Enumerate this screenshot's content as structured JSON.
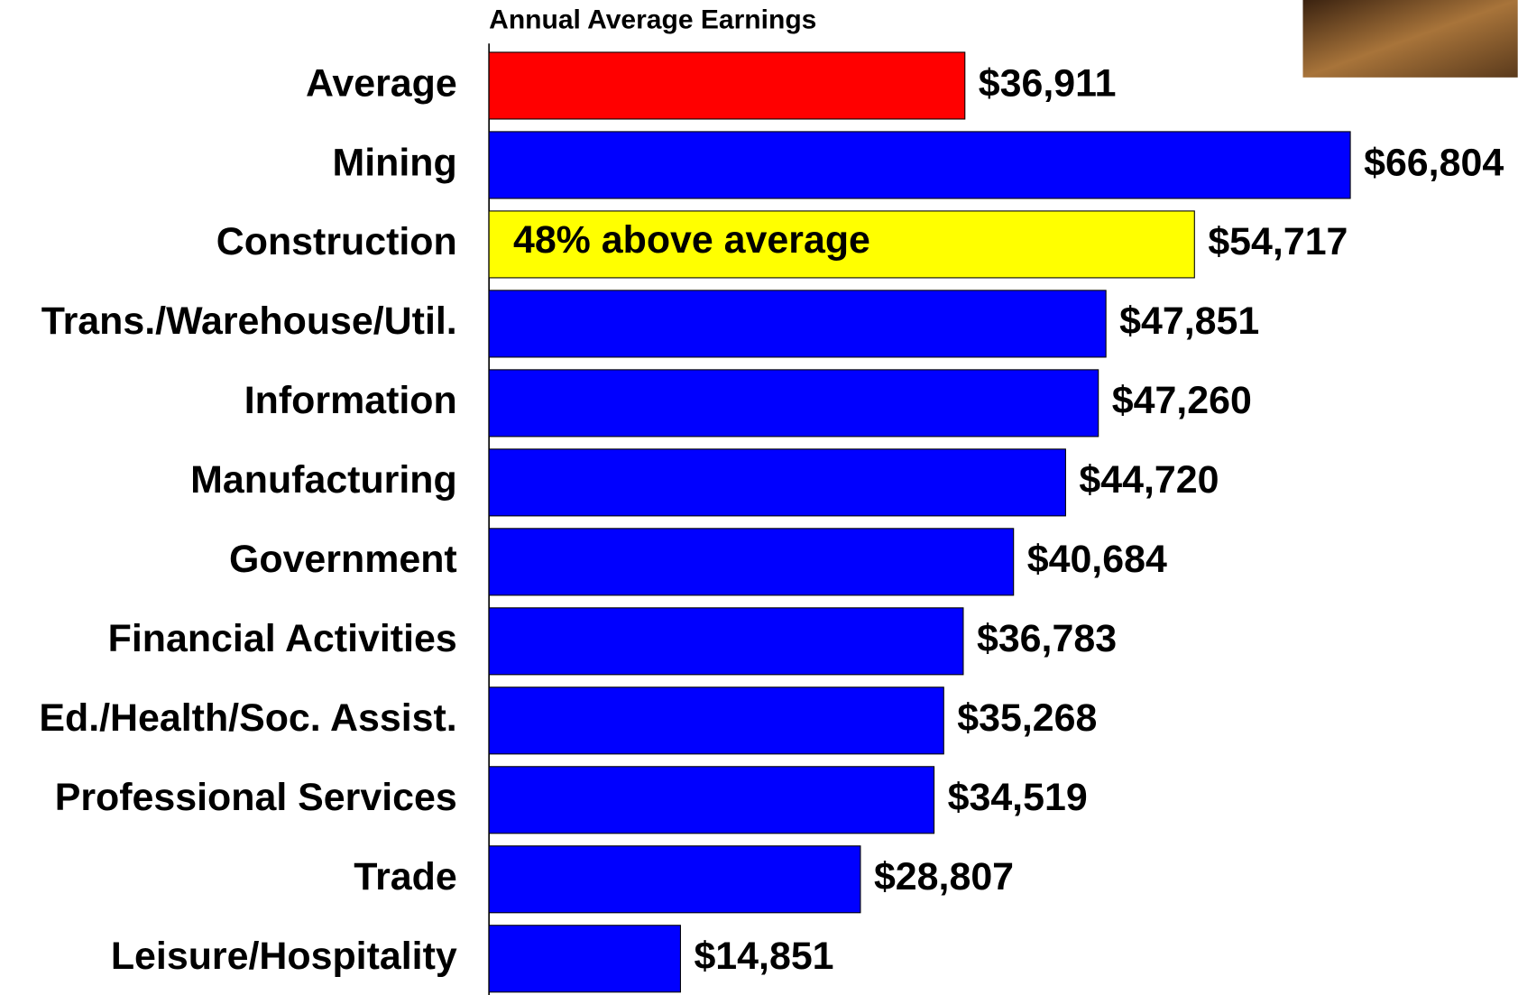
{
  "chart_data": {
    "type": "hbar",
    "title": "Annual Average Earnings",
    "categories": [
      "Average",
      "Mining",
      "Construction",
      "Trans./Warehouse/Util.",
      "Information",
      "Manufacturing",
      "Government",
      "Financial Activities",
      "Ed./Health/Soc. Assist.",
      "Professional Services",
      "Trade",
      "Leisure/Hospitality"
    ],
    "values": [
      36911,
      66804,
      54717,
      47851,
      47260,
      44720,
      40684,
      36783,
      35268,
      34519,
      28807,
      14851
    ],
    "value_labels": [
      "$36,911",
      "$66,804",
      "$54,717",
      "$47,851",
      "$47,260",
      "$44,720",
      "$40,684",
      "$36,783",
      "$35,268",
      "$34,519",
      "$28,807",
      "$14,851"
    ],
    "colors": [
      "#ff0000",
      "#0000ff",
      "#ffff00",
      "#0000ff",
      "#0000ff",
      "#0000ff",
      "#0000ff",
      "#0000ff",
      "#0000ff",
      "#0000ff",
      "#0000ff",
      "#0000ff"
    ],
    "annotation": {
      "text": "48% above average",
      "category": "Construction"
    }
  }
}
